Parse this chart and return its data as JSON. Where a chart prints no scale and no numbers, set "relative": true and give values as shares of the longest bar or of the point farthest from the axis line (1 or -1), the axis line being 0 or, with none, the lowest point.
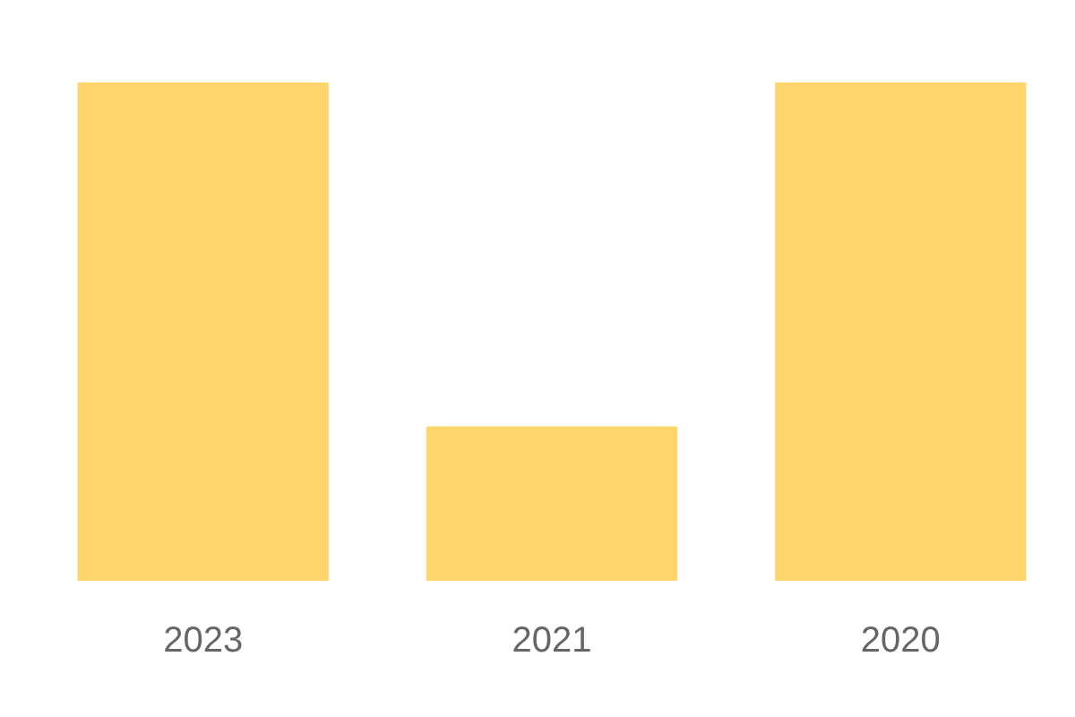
{
  "chart_data": {
    "type": "bar",
    "categories": [
      "2023",
      "2021",
      "2020"
    ],
    "values": [
      1,
      0.31,
      1
    ],
    "color": "#fed56b",
    "relative": true,
    "grid": false,
    "legend": false
  }
}
